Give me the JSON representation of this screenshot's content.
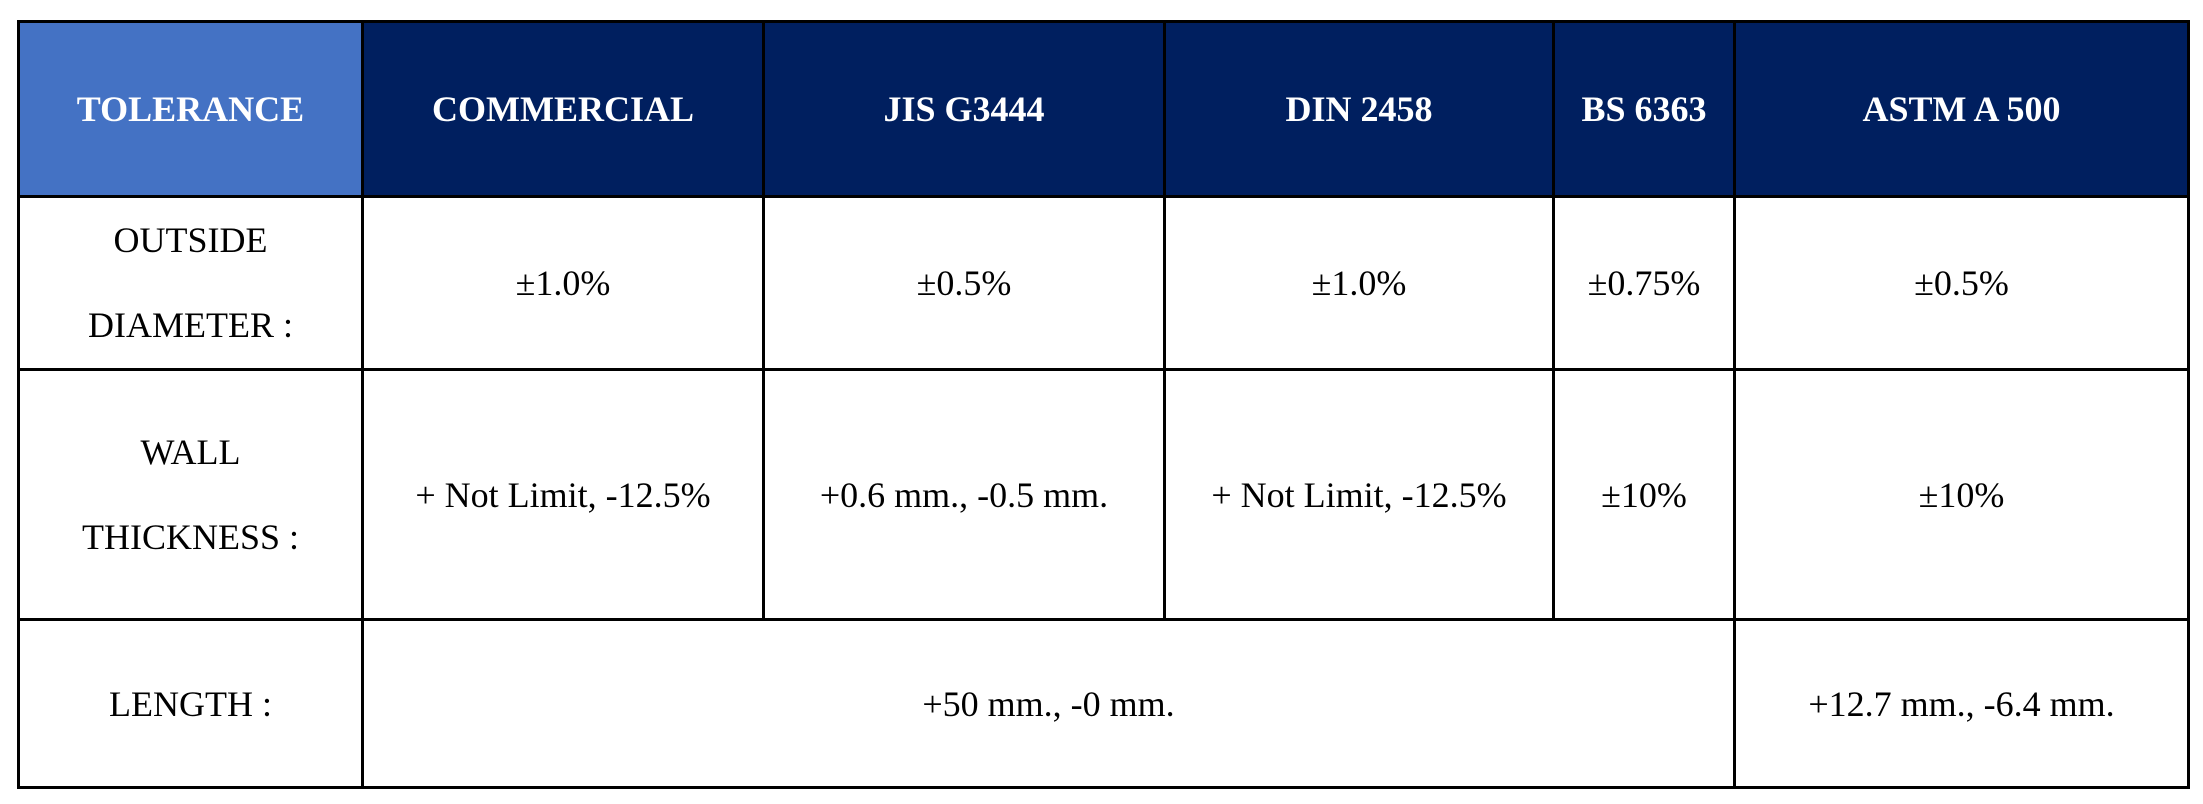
{
  "header": {
    "corner": "TOLERANCE",
    "columns": [
      "COMMERCIAL",
      "JIS G3444",
      "DIN 2458",
      "BS 6363",
      "ASTM A 500"
    ]
  },
  "rows": {
    "outside_diameter": {
      "label_line1": "OUTSIDE",
      "label_line2": "DIAMETER :",
      "values": [
        "±1.0%",
        "±0.5%",
        "±1.0%",
        "±0.75%",
        "±0.5%"
      ]
    },
    "wall_thickness": {
      "label_line1": "WALL",
      "label_line2": "THICKNESS :",
      "values": [
        "+ Not Limit, -12.5%",
        "+0.6 mm., -0.5 mm.",
        "+ Not Limit, -12.5%",
        "±10%",
        "±10%"
      ]
    },
    "length": {
      "label": "LENGTH :",
      "merged_value": "+50 mm., -0 mm.",
      "astm_value": "+12.7 mm., -6.4 mm."
    }
  },
  "colors": {
    "header_bg": "#001f5f",
    "corner_bg": "#4472c4",
    "header_text": "#ffffff",
    "border": "#000000"
  }
}
